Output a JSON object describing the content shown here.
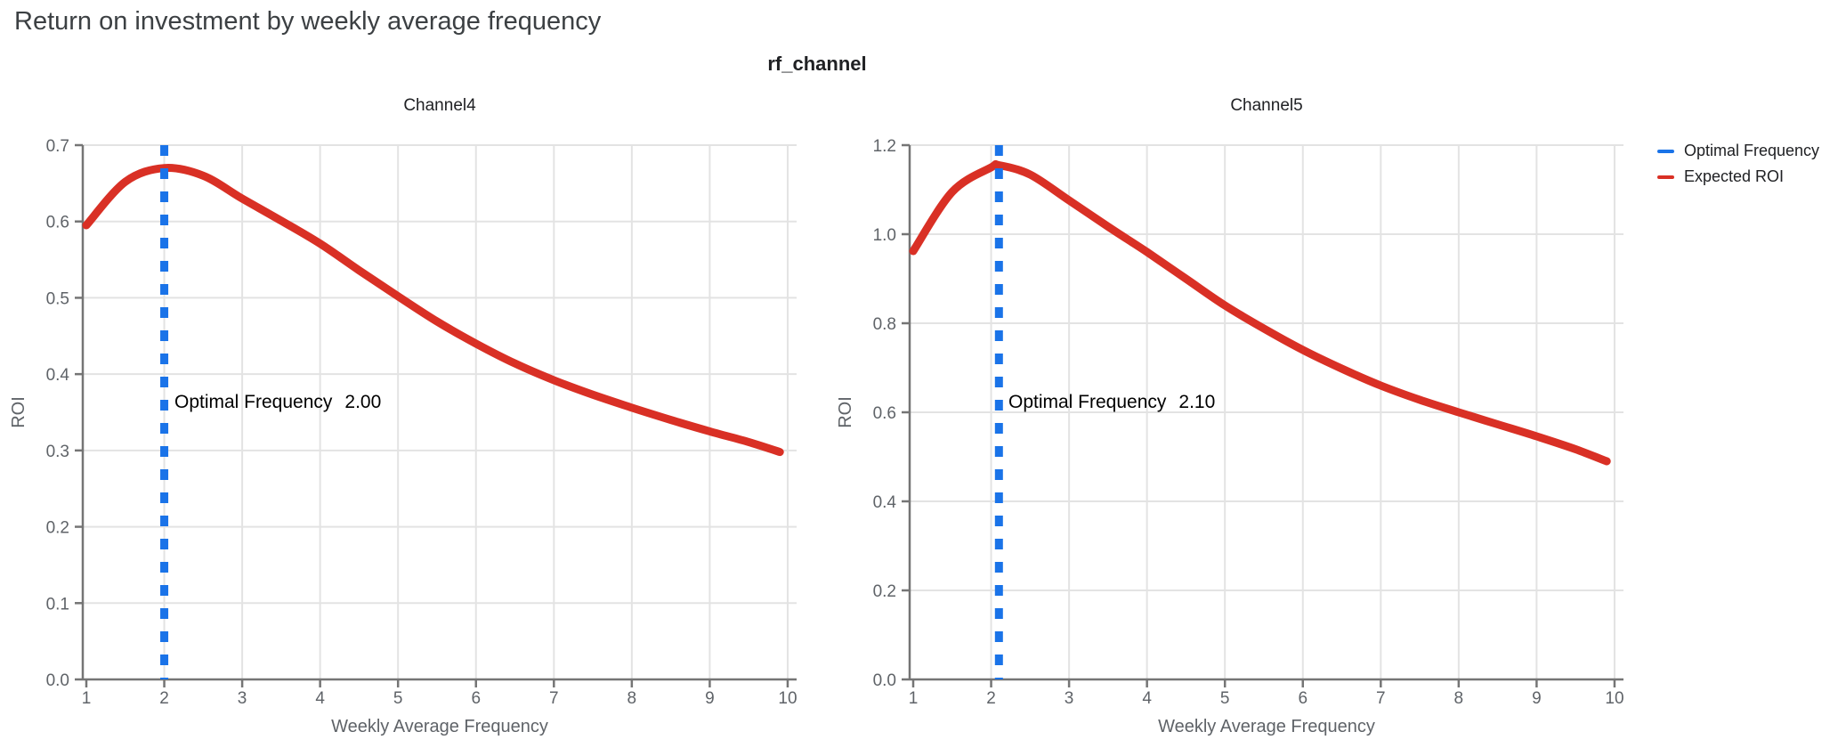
{
  "page": {
    "title": "Return on investment by weekly average frequency"
  },
  "figure": {
    "title": "rf_channel",
    "colors": {
      "optimal_frequency": "#1A73E8",
      "expected_roi": "#D93025",
      "grid": "#E3E3E3",
      "axis": "#757575",
      "tick_text": "#5F6368",
      "page_title_text": "#3C4043",
      "annotation_text": "#000000"
    },
    "legend": [
      {
        "label": "Optimal Frequency",
        "color": "#1A73E8"
      },
      {
        "label": "Expected ROI",
        "color": "#D93025"
      }
    ],
    "legend_position": "right"
  },
  "chart_data": [
    {
      "type": "line",
      "title": "Channel4",
      "xlabel": "Weekly Average Frequency",
      "ylabel": "ROI",
      "xlim": [
        1,
        10
      ],
      "ylim": [
        0.0,
        0.7
      ],
      "grid": true,
      "xticks": [
        1,
        2,
        3,
        4,
        5,
        6,
        7,
        8,
        9,
        10
      ],
      "ytick_values": [
        0.0,
        0.1,
        0.2,
        0.3,
        0.4,
        0.5,
        0.6,
        0.7
      ],
      "ytick_labels": [
        "0.0",
        "0.1",
        "0.2",
        "0.3",
        "0.4",
        "0.5",
        "0.6",
        "0.7"
      ],
      "optimal_frequency": 2.0,
      "annotation": {
        "label": "Optimal Frequency",
        "value": "2.00"
      },
      "series": [
        {
          "name": "Expected ROI",
          "x": [
            1,
            1.5,
            2,
            2.5,
            3,
            3.5,
            4,
            4.5,
            5,
            5.5,
            6,
            6.5,
            7,
            7.5,
            8,
            8.5,
            9,
            9.5,
            9.9
          ],
          "y": [
            0.595,
            0.652,
            0.67,
            0.66,
            0.63,
            0.601,
            0.571,
            0.536,
            0.502,
            0.469,
            0.44,
            0.414,
            0.392,
            0.373,
            0.356,
            0.34,
            0.325,
            0.311,
            0.298
          ]
        }
      ]
    },
    {
      "type": "line",
      "title": "Channel5",
      "xlabel": "Weekly Average Frequency",
      "ylabel": "ROI",
      "xlim": [
        1,
        10
      ],
      "ylim": [
        0.0,
        1.2
      ],
      "grid": true,
      "xticks": [
        1,
        2,
        3,
        4,
        5,
        6,
        7,
        8,
        9,
        10
      ],
      "ytick_values": [
        0.0,
        0.2,
        0.4,
        0.6,
        0.8,
        1.0,
        1.2
      ],
      "ytick_labels": [
        "0.0",
        "0.2",
        "0.4",
        "0.6",
        "0.8",
        "1.0",
        "1.2"
      ],
      "optimal_frequency": 2.1,
      "annotation": {
        "label": "Optimal Frequency",
        "value": "2.10"
      },
      "series": [
        {
          "name": "Expected ROI",
          "x": [
            1,
            1.5,
            2,
            2.1,
            2.5,
            3,
            3.5,
            4,
            4.5,
            5,
            5.5,
            6,
            6.5,
            7,
            7.5,
            8,
            8.5,
            9,
            9.5,
            9.9
          ],
          "y": [
            0.962,
            1.095,
            1.15,
            1.155,
            1.134,
            1.076,
            1.017,
            0.96,
            0.9,
            0.84,
            0.788,
            0.74,
            0.698,
            0.66,
            0.628,
            0.6,
            0.573,
            0.546,
            0.517,
            0.49
          ]
        }
      ]
    }
  ]
}
